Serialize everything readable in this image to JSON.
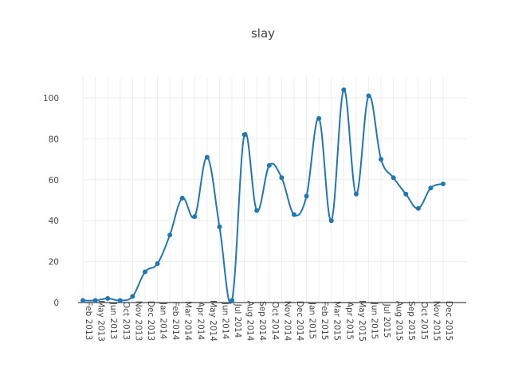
{
  "chart_data": {
    "type": "line",
    "title": "slay",
    "xlabel": "",
    "ylabel": "",
    "x": [
      "Feb 2013",
      "May 2013",
      "Jun 2013",
      "Oct 2013",
      "Nov 2013",
      "Dec 2013",
      "Jan 2014",
      "Feb 2014",
      "Mar 2014",
      "Apr 2014",
      "May 2014",
      "Jun 2014",
      "Jul 2014",
      "Aug 2014",
      "Sep 2014",
      "Oct 2014",
      "Nov 2014",
      "Dec 2014",
      "Jan 2015",
      "Feb 2015",
      "Mar 2015",
      "Apr 2015",
      "May 2015",
      "Jun 2015",
      "Jul 2015",
      "Aug 2015",
      "Sep 2015",
      "Oct 2015",
      "Nov 2015",
      "Dec 2015"
    ],
    "series": [
      {
        "values": [
          1,
          1,
          2,
          1,
          3,
          15,
          19,
          33,
          51,
          42,
          71,
          37,
          1,
          82,
          45,
          67,
          61,
          43,
          52,
          90,
          40,
          104,
          53,
          101,
          70,
          61,
          53,
          46,
          56,
          58
        ]
      }
    ],
    "yticks": [
      0,
      20,
      40,
      60,
      80,
      100
    ],
    "ylim": [
      0,
      110
    ],
    "grid": true,
    "legend": "none",
    "color": "#1f77b4"
  }
}
